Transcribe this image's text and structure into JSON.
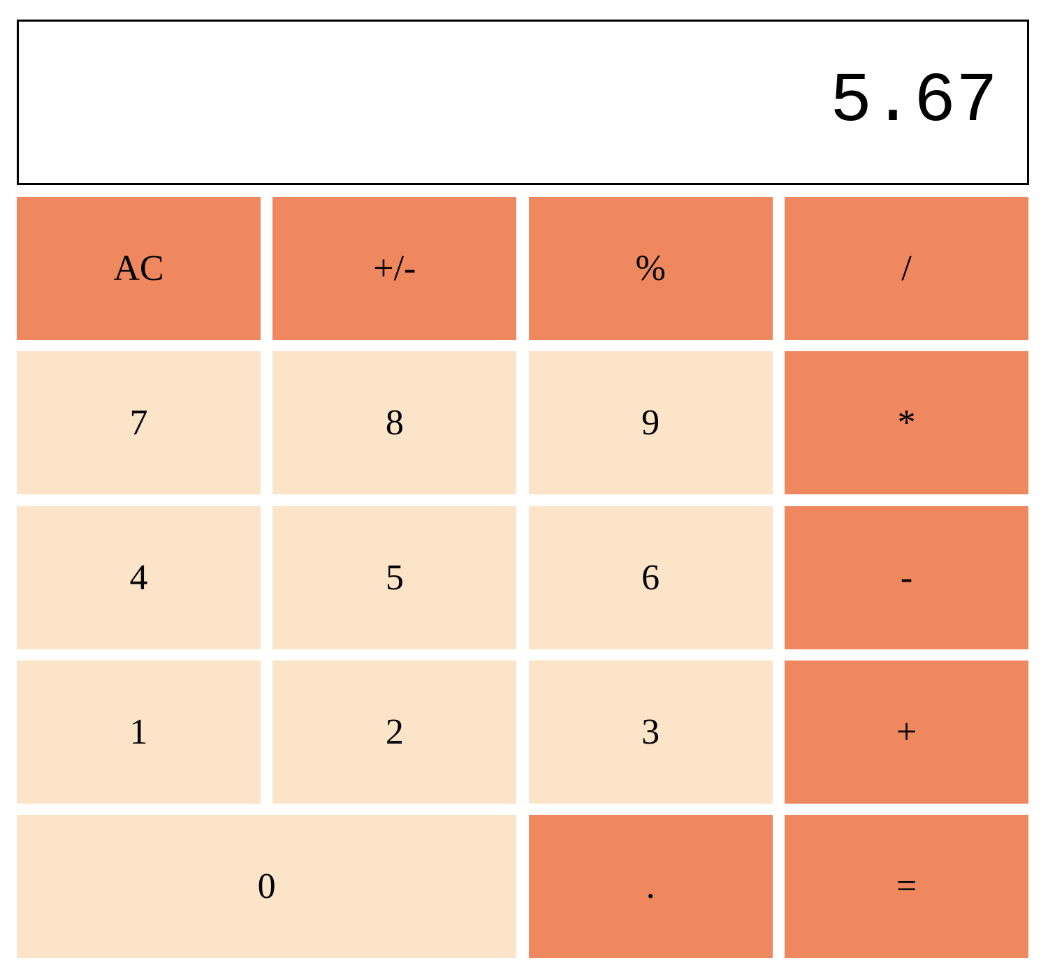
{
  "display": {
    "value": "5.67"
  },
  "colors": {
    "operator_key": "#EF885F",
    "digit_key": "#FCE4C9",
    "display_border": "#000000"
  },
  "keys": [
    {
      "name": "clear-button",
      "label": "AC",
      "kind": "op"
    },
    {
      "name": "sign-toggle-button",
      "label": "+/-",
      "kind": "op"
    },
    {
      "name": "percent-button",
      "label": "%",
      "kind": "op"
    },
    {
      "name": "divide-button",
      "label": "/",
      "kind": "op"
    },
    {
      "name": "digit-7-button",
      "label": "7",
      "kind": "num"
    },
    {
      "name": "digit-8-button",
      "label": "8",
      "kind": "num"
    },
    {
      "name": "digit-9-button",
      "label": "9",
      "kind": "num"
    },
    {
      "name": "multiply-button",
      "label": "*",
      "kind": "op"
    },
    {
      "name": "digit-4-button",
      "label": "4",
      "kind": "num"
    },
    {
      "name": "digit-5-button",
      "label": "5",
      "kind": "num"
    },
    {
      "name": "digit-6-button",
      "label": "6",
      "kind": "num"
    },
    {
      "name": "subtract-button",
      "label": "-",
      "kind": "op"
    },
    {
      "name": "digit-1-button",
      "label": "1",
      "kind": "num"
    },
    {
      "name": "digit-2-button",
      "label": "2",
      "kind": "num"
    },
    {
      "name": "digit-3-button",
      "label": "3",
      "kind": "num"
    },
    {
      "name": "add-button",
      "label": "+",
      "kind": "op"
    },
    {
      "name": "digit-0-button",
      "label": "0",
      "kind": "num"
    },
    {
      "name": "decimal-point-button",
      "label": ".",
      "kind": "op"
    },
    {
      "name": "equals-button",
      "label": "=",
      "kind": "op"
    }
  ]
}
